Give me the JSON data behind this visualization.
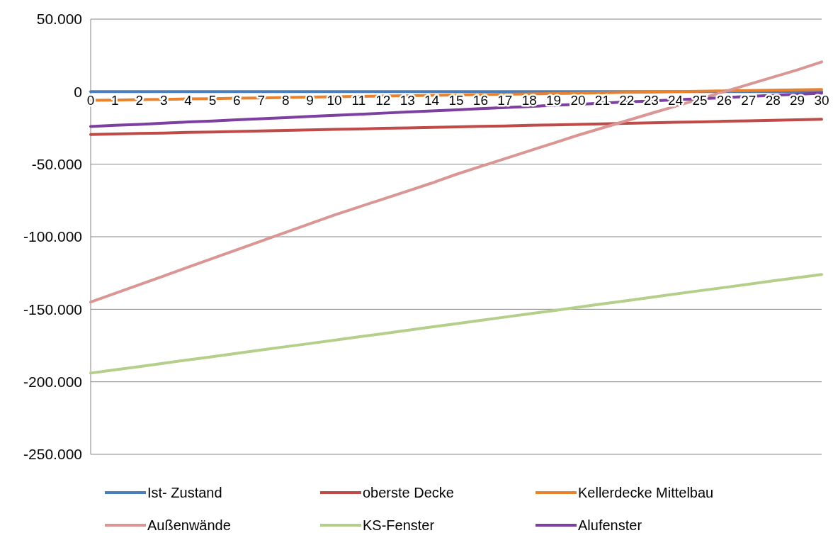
{
  "chart_data": {
    "type": "line",
    "x": [
      0,
      1,
      2,
      3,
      4,
      5,
      6,
      7,
      8,
      9,
      10,
      11,
      12,
      13,
      14,
      15,
      16,
      17,
      18,
      19,
      20,
      21,
      22,
      23,
      24,
      25,
      26,
      27,
      28,
      29,
      30
    ],
    "xlim": [
      0,
      30
    ],
    "xticks": [
      0,
      1,
      2,
      3,
      4,
      5,
      6,
      7,
      8,
      9,
      10,
      11,
      12,
      13,
      14,
      15,
      16,
      17,
      18,
      19,
      20,
      21,
      22,
      23,
      24,
      25,
      26,
      27,
      28,
      29,
      30
    ],
    "ylim": [
      -250000,
      50000
    ],
    "yticks": [
      {
        "value": -250000,
        "label": "-250.000"
      },
      {
        "value": -200000,
        "label": "-200.000"
      },
      {
        "value": -150000,
        "label": "-150.000"
      },
      {
        "value": -100000,
        "label": "-100.000"
      },
      {
        "value": -50000,
        "label": "-50.000"
      },
      {
        "value": 0,
        "label": "0"
      },
      {
        "value": 50000,
        "label": "50.000"
      }
    ],
    "grid": "y",
    "legend": "bottom",
    "marker": "none",
    "line_style": "solid",
    "series": [
      {
        "name": "Ist- Zustand",
        "color": "#4a7ebb",
        "values": [
          0,
          0,
          0,
          0,
          0,
          0,
          0,
          0,
          0,
          0,
          0,
          0,
          0,
          0,
          0,
          0,
          0,
          0,
          0,
          0,
          0,
          0,
          0,
          0,
          0,
          0,
          0,
          0,
          0,
          0,
          0
        ]
      },
      {
        "name": "oberste Decke",
        "color": "#be4b48",
        "values": [
          -29500,
          -29200,
          -28800,
          -28500,
          -28100,
          -27800,
          -27400,
          -27100,
          -26700,
          -26400,
          -26000,
          -25700,
          -25300,
          -25000,
          -24600,
          -24300,
          -23900,
          -23600,
          -23200,
          -22900,
          -22500,
          -22200,
          -21800,
          -21500,
          -21100,
          -20800,
          -20400,
          -20100,
          -19700,
          -19400,
          -19000
        ]
      },
      {
        "name": "Kellerdecke Mittelbau",
        "color": "#e8822e",
        "values": [
          -6000,
          -5800,
          -5500,
          -5300,
          -5000,
          -4800,
          -4500,
          -4300,
          -4000,
          -3800,
          -3500,
          -3300,
          -3000,
          -2800,
          -2500,
          -2300,
          -2000,
          -1800,
          -1500,
          -1300,
          -1000,
          -800,
          -500,
          -300,
          0,
          300,
          500,
          800,
          1000,
          1300,
          1500
        ]
      },
      {
        "name": "Außenwände",
        "color": "#d99694",
        "values": [
          -145000,
          -139000,
          -133000,
          -127000,
          -121000,
          -115000,
          -109000,
          -103000,
          -97000,
          -91000,
          -85000,
          -79500,
          -74000,
          -68500,
          -63000,
          -57000,
          -51600,
          -46200,
          -40800,
          -35400,
          -30000,
          -25000,
          -20000,
          -15000,
          -10000,
          -5000,
          0,
          5000,
          10000,
          15000,
          20500
        ]
      },
      {
        "name": "KS-Fenster",
        "color": "#b3cf8a",
        "values": [
          -194000,
          -191700,
          -189500,
          -187200,
          -184900,
          -182700,
          -180400,
          -178100,
          -175800,
          -173600,
          -171300,
          -169000,
          -166800,
          -164500,
          -162200,
          -160000,
          -157700,
          -155400,
          -153100,
          -150900,
          -148600,
          -146300,
          -144100,
          -141800,
          -139500,
          -137200,
          -135000,
          -132700,
          -130400,
          -128200,
          -126000
        ]
      },
      {
        "name": "Alufenster",
        "color": "#7d3fa0",
        "values": [
          -24000,
          -23200,
          -22500,
          -21700,
          -20900,
          -20200,
          -19400,
          -18600,
          -17900,
          -17100,
          -16300,
          -15600,
          -14800,
          -14000,
          -13300,
          -12500,
          -11700,
          -11000,
          -10200,
          -9400,
          -8700,
          -7900,
          -7100,
          -6400,
          -5600,
          -4800,
          -4100,
          -3300,
          -2500,
          -1800,
          -1000
        ]
      }
    ]
  }
}
